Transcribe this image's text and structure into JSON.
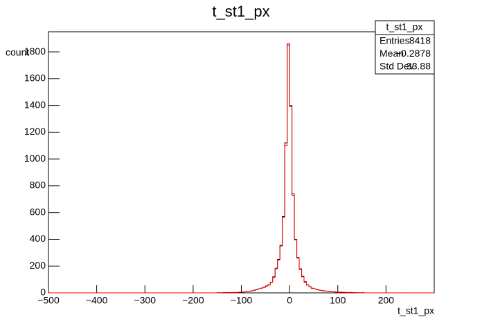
{
  "chart_data": {
    "type": "histogram",
    "title": "t_st1_px",
    "x_label": "t_st1_px",
    "y_label": "count",
    "xlim": [
      -500,
      300
    ],
    "ylim": [
      0,
      1950
    ],
    "xticks": [
      {
        "value": -500,
        "label": "−500"
      },
      {
        "value": -400,
        "label": "−400"
      },
      {
        "value": -300,
        "label": "−300"
      },
      {
        "value": -200,
        "label": "−200"
      },
      {
        "value": -100,
        "label": "−100"
      },
      0,
      100,
      200
    ],
    "yticks": [
      0,
      200,
      400,
      600,
      800,
      1000,
      1200,
      1400,
      1600,
      1800
    ],
    "bins": [
      -500,
      -495,
      -490,
      -485,
      -480,
      -475,
      -470,
      -465,
      -460,
      -455,
      -450,
      -445,
      -440,
      -435,
      -430,
      -425,
      -420,
      -415,
      -410,
      -405,
      -400,
      -395,
      -390,
      -385,
      -380,
      -375,
      -370,
      -365,
      -360,
      -355,
      -350,
      -345,
      -340,
      -335,
      -330,
      -325,
      -320,
      -315,
      -310,
      -305,
      -300,
      -295,
      -290,
      -285,
      -280,
      -275,
      -270,
      -265,
      -260,
      -255,
      -250,
      -245,
      -240,
      -235,
      -230,
      -225,
      -220,
      -215,
      -210,
      -205,
      -200,
      -195,
      -190,
      -185,
      -180,
      -175,
      -170,
      -165,
      -160,
      -155,
      -150,
      -145,
      -140,
      -135,
      -130,
      -125,
      -120,
      -115,
      -110,
      -105,
      -100,
      -95,
      -90,
      -85,
      -80,
      -75,
      -70,
      -65,
      -60,
      -55,
      -50,
      -45,
      -40,
      -35,
      -30,
      -25,
      -20,
      -15,
      -10,
      -5,
      0,
      5,
      10,
      15,
      20,
      25,
      30,
      35,
      40,
      45,
      50,
      55,
      60,
      65,
      70,
      75,
      80,
      85,
      90,
      95,
      100,
      105,
      110,
      115,
      120,
      125,
      130,
      135,
      140,
      145,
      150,
      155,
      160,
      165,
      170,
      175,
      180,
      185,
      190,
      195,
      200,
      205,
      210,
      215,
      220,
      225,
      230,
      235,
      240,
      245,
      250,
      255,
      260,
      265,
      270,
      275,
      280,
      285,
      290,
      295,
      300
    ],
    "series": [
      {
        "color": "#000000",
        "values": [
          0,
          0,
          0,
          0,
          0,
          0,
          0,
          0,
          0,
          0,
          0,
          0,
          0,
          0,
          0,
          0,
          0,
          0,
          0,
          0,
          0,
          0,
          0,
          0,
          0,
          0,
          0,
          0,
          0,
          0,
          0,
          0,
          0,
          0,
          0,
          0,
          0,
          0,
          0,
          0,
          0,
          0,
          0,
          0,
          0,
          0,
          0,
          0,
          0,
          0,
          0,
          0,
          0,
          0,
          0,
          0,
          0,
          0,
          0,
          0,
          0,
          0,
          0,
          0,
          0,
          0,
          0,
          0,
          0,
          0,
          1,
          0,
          1,
          2,
          1,
          2,
          2,
          3,
          3,
          4,
          6,
          8,
          10,
          12,
          15,
          20,
          25,
          30,
          35,
          42,
          50,
          60,
          80,
          120,
          180,
          250,
          350,
          570,
          1120,
          1860,
          1400,
          730,
          400,
          260,
          180,
          120,
          80,
          60,
          45,
          35,
          30,
          25,
          20,
          18,
          15,
          12,
          10,
          8,
          8,
          6,
          5,
          5,
          4,
          3,
          2,
          3,
          2,
          1,
          1,
          1,
          1,
          0,
          0,
          0,
          0,
          0,
          0,
          0,
          0,
          0,
          0,
          0,
          0,
          0,
          0,
          0,
          0,
          0,
          0,
          0,
          0,
          0,
          0,
          0,
          0,
          0,
          0,
          0,
          0,
          0
        ]
      },
      {
        "color": "#ff0000",
        "values": [
          0,
          0,
          0,
          0,
          0,
          0,
          0,
          0,
          0,
          0,
          0,
          0,
          0,
          0,
          0,
          0,
          0,
          0,
          0,
          0,
          0,
          0,
          0,
          0,
          0,
          0,
          0,
          0,
          0,
          0,
          0,
          0,
          0,
          0,
          0,
          0,
          0,
          0,
          0,
          0,
          0,
          0,
          0,
          0,
          0,
          0,
          0,
          0,
          0,
          0,
          0,
          0,
          0,
          0,
          0,
          0,
          0,
          0,
          0,
          0,
          0,
          0,
          0,
          0,
          0,
          0,
          0,
          0,
          0,
          0,
          0,
          1,
          1,
          1,
          2,
          2,
          3,
          2,
          3,
          5,
          5,
          7,
          11,
          12,
          16,
          19,
          24,
          31,
          36,
          40,
          52,
          58,
          78,
          115,
          185,
          245,
          355,
          560,
          1100,
          1850,
          1390,
          740,
          395,
          265,
          175,
          125,
          85,
          58,
          47,
          33,
          31,
          24,
          21,
          17,
          14,
          13,
          9,
          9,
          7,
          6,
          4,
          5,
          4,
          2,
          3,
          2,
          2,
          1,
          1,
          0,
          1,
          0,
          0,
          0,
          0,
          0,
          0,
          0,
          0,
          0,
          0,
          0,
          0,
          0,
          0,
          0,
          0,
          0,
          0,
          0,
          0,
          0,
          0,
          0,
          0,
          0,
          0,
          0,
          0,
          0
        ]
      }
    ],
    "stats": {
      "title": "t_st1_px",
      "rows": [
        [
          "Entries",
          "8418"
        ],
        [
          "Mean",
          "−0.2878"
        ],
        [
          "Std Dev",
          "33.88"
        ]
      ]
    }
  }
}
